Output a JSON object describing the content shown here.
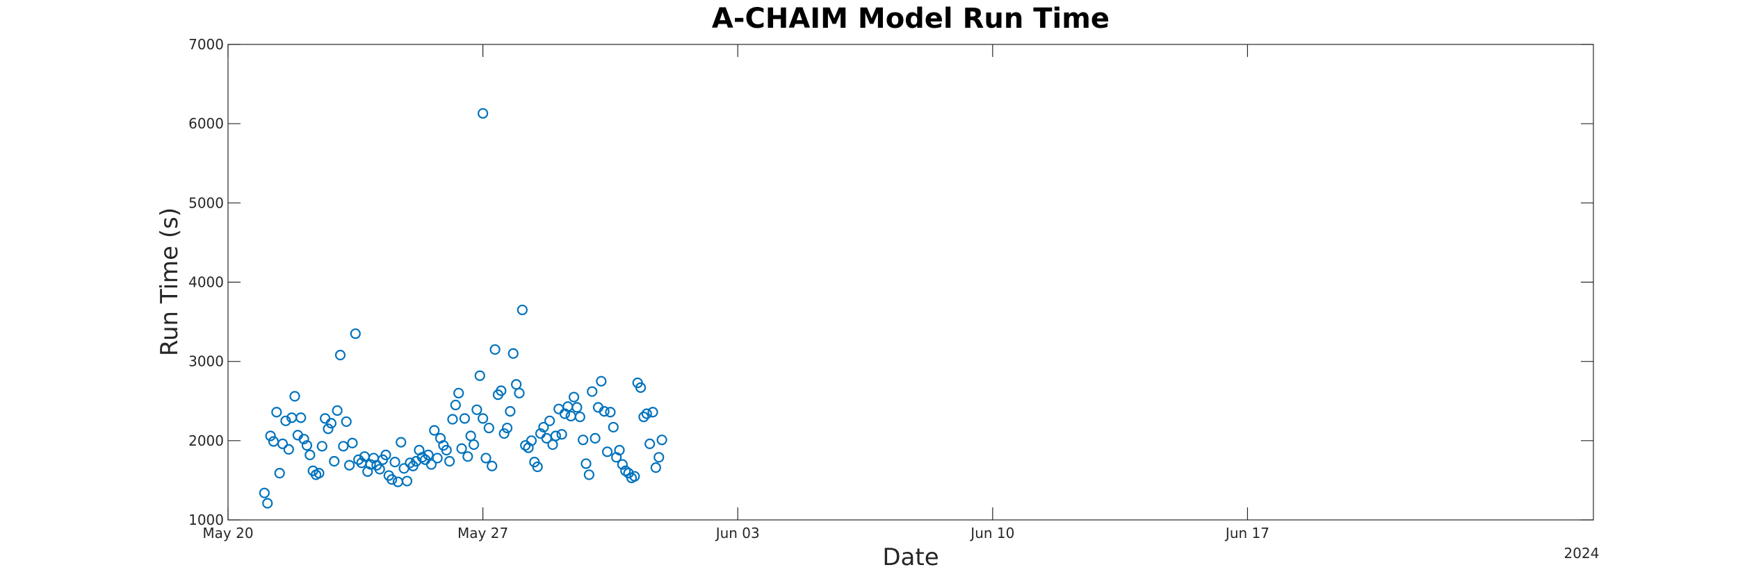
{
  "chart_data": {
    "type": "scatter",
    "title": "A-CHAIM Model Run Time",
    "xlabel": "Date",
    "ylabel": "Run Time (s)",
    "x_axis_kind": "date",
    "xlim": [
      "2024-05-20",
      "2024-06-26T12:00"
    ],
    "ylim": [
      1000,
      7000
    ],
    "x_tick_dates": [
      "2024-05-20",
      "2024-05-27",
      "2024-06-03",
      "2024-06-10",
      "2024-06-17"
    ],
    "x_tick_labels": [
      "May 20",
      "May 27",
      "Jun 03",
      "Jun 10",
      "Jun 17"
    ],
    "x_secondary_label": "2024",
    "y_ticks": [
      1000,
      2000,
      3000,
      4000,
      5000,
      6000,
      7000
    ],
    "y_tick_labels": [
      "1000",
      "2000",
      "3000",
      "4000",
      "5000",
      "6000",
      "7000"
    ],
    "grid": false,
    "marker": "circle",
    "color": "#0072BD",
    "series": [
      {
        "points": [
          [
            "2024-05-21T00:00",
            1340
          ],
          [
            "2024-05-21T02:00",
            1210
          ],
          [
            "2024-05-21T04:00",
            2060
          ],
          [
            "2024-05-21T06:00",
            1990
          ],
          [
            "2024-05-21T08:00",
            2360
          ],
          [
            "2024-05-21T10:00",
            1590
          ],
          [
            "2024-05-21T12:00",
            1960
          ],
          [
            "2024-05-21T14:00",
            2250
          ],
          [
            "2024-05-21T16:00",
            1890
          ],
          [
            "2024-05-21T18:00",
            2290
          ],
          [
            "2024-05-21T20:00",
            2560
          ],
          [
            "2024-05-21T22:00",
            2070
          ],
          [
            "2024-05-22T00:00",
            2290
          ],
          [
            "2024-05-22T02:00",
            2020
          ],
          [
            "2024-05-22T04:00",
            1940
          ],
          [
            "2024-05-22T06:00",
            1820
          ],
          [
            "2024-05-22T08:00",
            1620
          ],
          [
            "2024-05-22T10:00",
            1570
          ],
          [
            "2024-05-22T12:00",
            1590
          ],
          [
            "2024-05-22T14:00",
            1930
          ],
          [
            "2024-05-22T16:00",
            2280
          ],
          [
            "2024-05-22T18:00",
            2150
          ],
          [
            "2024-05-22T20:00",
            2220
          ],
          [
            "2024-05-22T22:00",
            1740
          ],
          [
            "2024-05-23T00:00",
            2380
          ],
          [
            "2024-05-23T02:00",
            3080
          ],
          [
            "2024-05-23T04:00",
            1930
          ],
          [
            "2024-05-23T06:00",
            2240
          ],
          [
            "2024-05-23T08:00",
            1690
          ],
          [
            "2024-05-23T10:00",
            1970
          ],
          [
            "2024-05-23T12:00",
            3350
          ],
          [
            "2024-05-23T14:00",
            1760
          ],
          [
            "2024-05-23T16:00",
            1720
          ],
          [
            "2024-05-23T18:00",
            1800
          ],
          [
            "2024-05-23T20:00",
            1610
          ],
          [
            "2024-05-23T22:00",
            1700
          ],
          [
            "2024-05-24T00:00",
            1780
          ],
          [
            "2024-05-24T02:00",
            1690
          ],
          [
            "2024-05-24T04:00",
            1640
          ],
          [
            "2024-05-24T06:00",
            1760
          ],
          [
            "2024-05-24T08:00",
            1820
          ],
          [
            "2024-05-24T10:00",
            1560
          ],
          [
            "2024-05-24T12:00",
            1510
          ],
          [
            "2024-05-24T14:00",
            1730
          ],
          [
            "2024-05-24T16:00",
            1480
          ],
          [
            "2024-05-24T18:00",
            1980
          ],
          [
            "2024-05-24T20:00",
            1650
          ],
          [
            "2024-05-24T22:00",
            1490
          ],
          [
            "2024-05-25T00:00",
            1720
          ],
          [
            "2024-05-25T02:00",
            1680
          ],
          [
            "2024-05-25T04:00",
            1740
          ],
          [
            "2024-05-25T06:00",
            1880
          ],
          [
            "2024-05-25T08:00",
            1790
          ],
          [
            "2024-05-25T10:00",
            1760
          ],
          [
            "2024-05-25T12:00",
            1820
          ],
          [
            "2024-05-25T14:00",
            1700
          ],
          [
            "2024-05-25T16:00",
            2130
          ],
          [
            "2024-05-25T18:00",
            1780
          ],
          [
            "2024-05-25T20:00",
            2030
          ],
          [
            "2024-05-25T22:00",
            1940
          ],
          [
            "2024-05-26T00:00",
            1880
          ],
          [
            "2024-05-26T02:00",
            1740
          ],
          [
            "2024-05-26T04:00",
            2270
          ],
          [
            "2024-05-26T06:00",
            2450
          ],
          [
            "2024-05-26T08:00",
            2600
          ],
          [
            "2024-05-26T10:00",
            1900
          ],
          [
            "2024-05-26T12:00",
            2280
          ],
          [
            "2024-05-26T14:00",
            1800
          ],
          [
            "2024-05-26T16:00",
            2060
          ],
          [
            "2024-05-26T18:00",
            1950
          ],
          [
            "2024-05-26T20:00",
            2390
          ],
          [
            "2024-05-26T22:00",
            2820
          ],
          [
            "2024-05-27T00:00",
            2280
          ],
          [
            "2024-05-27T02:00",
            1780
          ],
          [
            "2024-05-27T04:00",
            2160
          ],
          [
            "2024-05-27T06:00",
            1680
          ],
          [
            "2024-05-27T08:00",
            3150
          ],
          [
            "2024-05-27T10:00",
            2580
          ],
          [
            "2024-05-27T12:00",
            2630
          ],
          [
            "2024-05-27T14:00",
            2090
          ],
          [
            "2024-05-27T16:00",
            2160
          ],
          [
            "2024-05-27T18:00",
            2370
          ],
          [
            "2024-05-27T20:00",
            3100
          ],
          [
            "2024-05-27T22:00",
            2710
          ],
          [
            "2024-05-28T00:00",
            2600
          ],
          [
            "2024-05-28T02:00",
            3650
          ],
          [
            "2024-05-28T04:00",
            1940
          ],
          [
            "2024-05-28T06:00",
            1910
          ],
          [
            "2024-05-28T08:00",
            2000
          ],
          [
            "2024-05-28T10:00",
            1730
          ],
          [
            "2024-05-28T12:00",
            1670
          ],
          [
            "2024-05-28T14:00",
            2090
          ],
          [
            "2024-05-28T16:00",
            2170
          ],
          [
            "2024-05-28T18:00",
            2030
          ],
          [
            "2024-05-28T20:00",
            2250
          ],
          [
            "2024-05-28T22:00",
            1950
          ],
          [
            "2024-05-29T00:00",
            2060
          ],
          [
            "2024-05-29T02:00",
            2400
          ],
          [
            "2024-05-29T04:00",
            2080
          ],
          [
            "2024-05-29T06:00",
            2340
          ],
          [
            "2024-05-29T08:00",
            2430
          ],
          [
            "2024-05-29T10:00",
            2310
          ],
          [
            "2024-05-29T12:00",
            2550
          ],
          [
            "2024-05-29T14:00",
            2420
          ],
          [
            "2024-05-29T16:00",
            2300
          ],
          [
            "2024-05-29T18:00",
            2010
          ],
          [
            "2024-05-29T20:00",
            1710
          ],
          [
            "2024-05-29T22:00",
            1570
          ],
          [
            "2024-05-30T00:00",
            2620
          ],
          [
            "2024-05-30T02:00",
            2030
          ],
          [
            "2024-05-30T04:00",
            2420
          ],
          [
            "2024-05-30T06:00",
            2750
          ],
          [
            "2024-05-30T08:00",
            2370
          ],
          [
            "2024-05-30T10:00",
            1860
          ],
          [
            "2024-05-30T12:00",
            2360
          ],
          [
            "2024-05-30T14:00",
            2170
          ],
          [
            "2024-05-30T16:00",
            1790
          ],
          [
            "2024-05-30T18:00",
            1880
          ],
          [
            "2024-05-30T20:00",
            1700
          ],
          [
            "2024-05-30T22:00",
            1620
          ],
          [
            "2024-05-31T00:00",
            1590
          ],
          [
            "2024-05-31T02:00",
            1530
          ],
          [
            "2024-05-31T04:00",
            1550
          ],
          [
            "2024-05-31T06:00",
            2730
          ],
          [
            "2024-05-31T08:00",
            2670
          ],
          [
            "2024-05-31T10:00",
            2300
          ],
          [
            "2024-05-31T12:00",
            2340
          ],
          [
            "2024-05-31T14:00",
            1960
          ],
          [
            "2024-05-31T16:00",
            2360
          ],
          [
            "2024-05-31T18:00",
            1660
          ],
          [
            "2024-05-31T20:00",
            1790
          ],
          [
            "2024-05-31T22:00",
            2010
          ],
          [
            "2024-05-27T00:00",
            6130
          ]
        ]
      }
    ]
  }
}
